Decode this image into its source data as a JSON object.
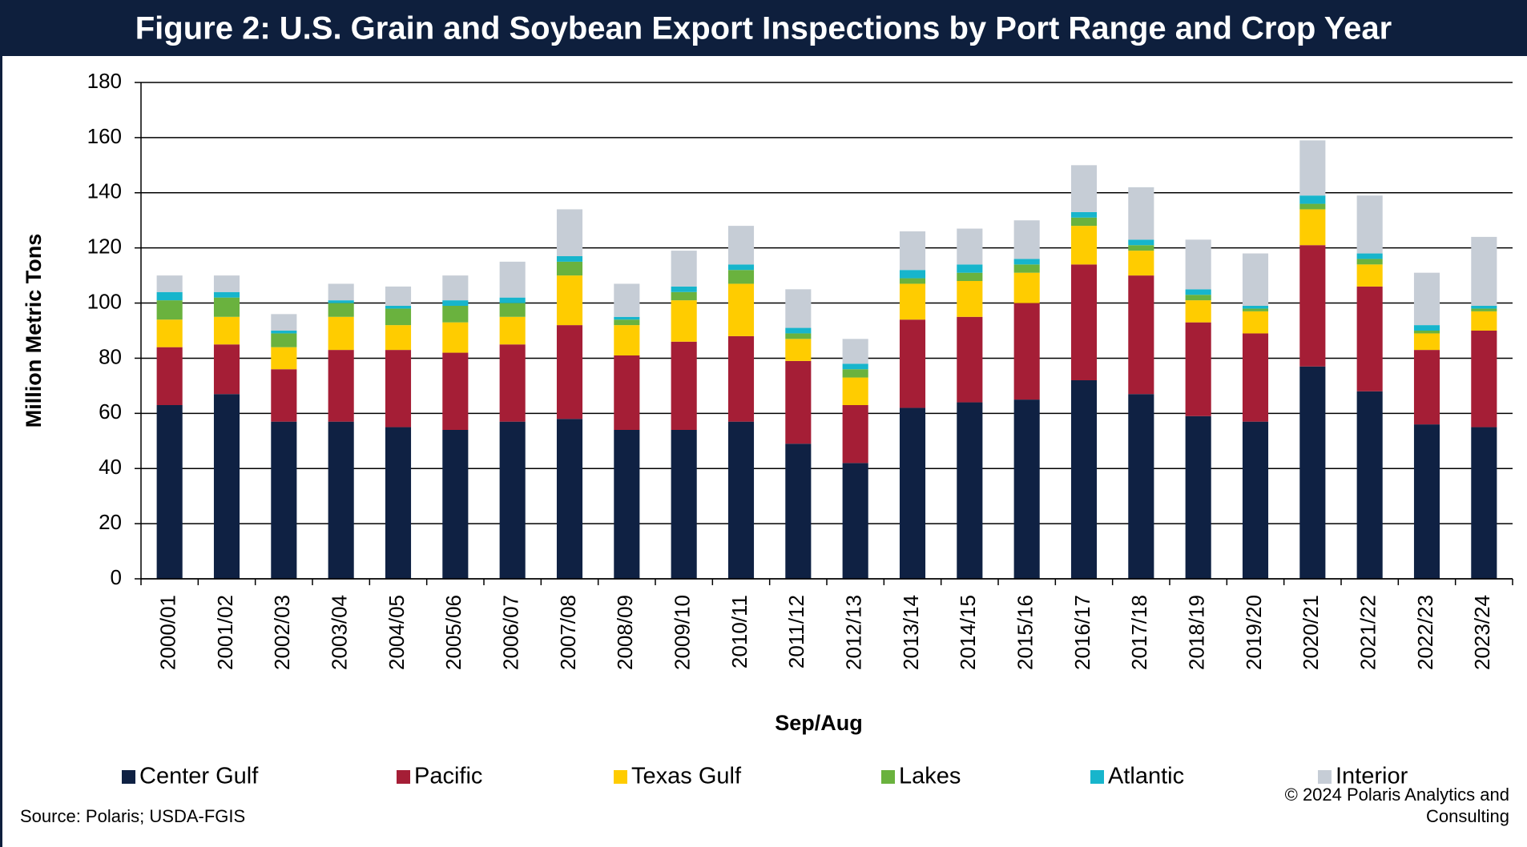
{
  "chart_data": {
    "type": "stacked-bar",
    "title": "Figure 2: U.S. Grain and Soybean Export Inspections by Port Range and Crop Year",
    "y_label": "Million  Metric Tons",
    "x_label": "Sep/Aug",
    "source": "Source:  Polaris; USDA-FGIS",
    "copyright": [
      "© 2024 Polaris Analytics and",
      "Consulting"
    ],
    "categories": [
      "2000/01",
      "2001/02",
      "2002/03",
      "2003/04",
      "2004/05",
      "2005/06",
      "2006/07",
      "2007/08",
      "2008/09",
      "2009/10",
      "2010/11",
      "2011/12",
      "2012/13",
      "2013/14",
      "2014/15",
      "2015/16",
      "2016/17",
      "2017/18",
      "2018/19",
      "2019/20",
      "2020/21",
      "2021/22",
      "2022/23",
      "2023/24"
    ],
    "series": [
      {
        "name": "Center Gulf",
        "color": "#0f2143",
        "values": [
          63,
          67,
          57,
          57,
          55,
          54,
          57,
          58,
          54,
          54,
          57,
          49,
          42,
          62,
          64,
          65,
          72,
          67,
          59,
          57,
          77,
          68,
          56,
          55
        ]
      },
      {
        "name": "Pacific",
        "color": "#a51e36",
        "values": [
          21,
          18,
          19,
          26,
          28,
          28,
          28,
          34,
          27,
          32,
          31,
          30,
          21,
          32,
          31,
          35,
          42,
          43,
          34,
          32,
          44,
          38,
          27,
          35
        ]
      },
      {
        "name": "Texas Gulf",
        "color": "#ffcc00",
        "values": [
          10,
          10,
          8,
          12,
          9,
          11,
          10,
          18,
          11,
          15,
          19,
          8,
          10,
          13,
          13,
          11,
          14,
          9,
          8,
          8,
          13,
          8,
          6,
          7
        ]
      },
      {
        "name": "Lakes",
        "color": "#6ab23e",
        "values": [
          7,
          7,
          5,
          5,
          6,
          6,
          5,
          5,
          2,
          3,
          5,
          2,
          3,
          2,
          3,
          3,
          3,
          2,
          2,
          1,
          2,
          2,
          1,
          1
        ]
      },
      {
        "name": "Atlantic",
        "color": "#17b5cc",
        "values": [
          3,
          2,
          1,
          1,
          1,
          2,
          2,
          2,
          1,
          2,
          2,
          2,
          2,
          3,
          3,
          2,
          2,
          2,
          2,
          1,
          3,
          2,
          2,
          1
        ]
      },
      {
        "name": "Interior",
        "color": "#c6cdd6",
        "values": [
          6,
          6,
          6,
          6,
          7,
          9,
          13,
          17,
          12,
          13,
          14,
          14,
          9,
          14,
          13,
          14,
          17,
          19,
          18,
          19,
          20,
          21,
          19,
          25
        ]
      }
    ],
    "ylim": [
      0,
      180
    ],
    "yticks": [
      0,
      20,
      40,
      60,
      80,
      100,
      120,
      140,
      160,
      180
    ],
    "grid": true
  }
}
